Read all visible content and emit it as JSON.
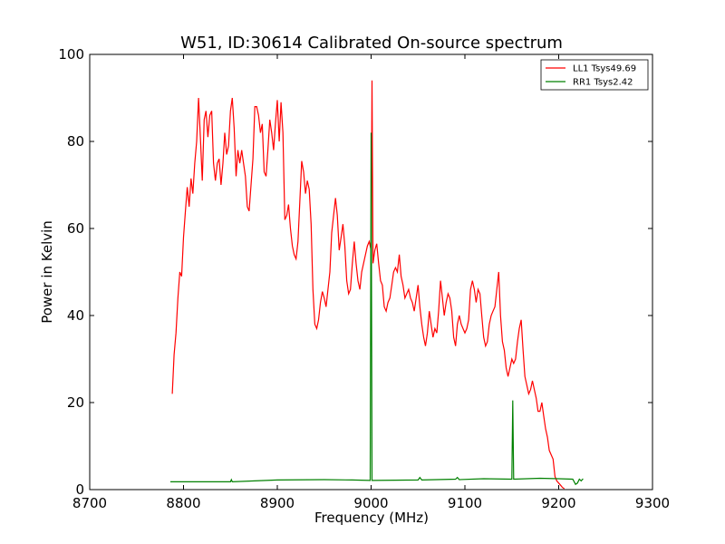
{
  "chart_data": {
    "type": "line",
    "title": "W51, ID:30614 Calibrated On-source spectrum",
    "xlabel": "Frequency (MHz)",
    "ylabel": "Power in Kelvin",
    "xlim": [
      8700,
      9300
    ],
    "ylim": [
      0,
      100
    ],
    "xticks": [
      "8700",
      "8800",
      "8900",
      "9000",
      "9100",
      "9200",
      "9300"
    ],
    "yticks": [
      "0",
      "20",
      "40",
      "60",
      "80",
      "100"
    ],
    "grid": false,
    "legend_position": "top-right",
    "series": [
      {
        "name": "LL1 Tsys49.69",
        "color": "#ff0000",
        "points": [
          [
            8788,
            22
          ],
          [
            8790,
            31
          ],
          [
            8792,
            36
          ],
          [
            8794,
            44
          ],
          [
            8796,
            50
          ],
          [
            8798,
            49
          ],
          [
            8800,
            58
          ],
          [
            8802,
            64
          ],
          [
            8804,
            69.5
          ],
          [
            8806,
            65
          ],
          [
            8808,
            71.5
          ],
          [
            8810,
            68
          ],
          [
            8812,
            75
          ],
          [
            8814,
            80
          ],
          [
            8816,
            90
          ],
          [
            8818,
            81
          ],
          [
            8820,
            71
          ],
          [
            8822,
            85
          ],
          [
            8824,
            87
          ],
          [
            8826,
            81
          ],
          [
            8828,
            86
          ],
          [
            8830,
            87
          ],
          [
            8832,
            75
          ],
          [
            8834,
            71
          ],
          [
            8836,
            75
          ],
          [
            8838,
            76
          ],
          [
            8840,
            70
          ],
          [
            8842,
            75
          ],
          [
            8844,
            82
          ],
          [
            8846,
            77
          ],
          [
            8848,
            79
          ],
          [
            8850,
            87
          ],
          [
            8852,
            90
          ],
          [
            8854,
            83
          ],
          [
            8856,
            72
          ],
          [
            8858,
            78
          ],
          [
            8860,
            75
          ],
          [
            8862,
            78
          ],
          [
            8864,
            75
          ],
          [
            8866,
            72
          ],
          [
            8868,
            65
          ],
          [
            8870,
            64
          ],
          [
            8872,
            70
          ],
          [
            8874,
            76
          ],
          [
            8876,
            88
          ],
          [
            8878,
            88
          ],
          [
            8880,
            86
          ],
          [
            8882,
            82
          ],
          [
            8884,
            84
          ],
          [
            8886,
            73
          ],
          [
            8888,
            72
          ],
          [
            8890,
            78
          ],
          [
            8892,
            85
          ],
          [
            8894,
            82
          ],
          [
            8896,
            78
          ],
          [
            8898,
            84
          ],
          [
            8900,
            89.5
          ],
          [
            8902,
            80
          ],
          [
            8904,
            89
          ],
          [
            8906,
            82
          ],
          [
            8908,
            62
          ],
          [
            8910,
            63
          ],
          [
            8912,
            65.5
          ],
          [
            8914,
            60
          ],
          [
            8916,
            56
          ],
          [
            8918,
            54
          ],
          [
            8920,
            53
          ],
          [
            8922,
            57
          ],
          [
            8924,
            66
          ],
          [
            8926,
            75.5
          ],
          [
            8928,
            73
          ],
          [
            8930,
            68
          ],
          [
            8932,
            71
          ],
          [
            8934,
            69
          ],
          [
            8936,
            61
          ],
          [
            8938,
            46
          ],
          [
            8940,
            38
          ],
          [
            8942,
            37
          ],
          [
            8944,
            39
          ],
          [
            8946,
            43
          ],
          [
            8948,
            45.5
          ],
          [
            8950,
            44
          ],
          [
            8952,
            42
          ],
          [
            8954,
            46
          ],
          [
            8956,
            50
          ],
          [
            8958,
            59
          ],
          [
            8960,
            63
          ],
          [
            8962,
            67
          ],
          [
            8964,
            63
          ],
          [
            8966,
            55
          ],
          [
            8968,
            58
          ],
          [
            8970,
            61
          ],
          [
            8972,
            56
          ],
          [
            8974,
            48
          ],
          [
            8976,
            45
          ],
          [
            8978,
            46
          ],
          [
            8980,
            52
          ],
          [
            8982,
            57
          ],
          [
            8984,
            52
          ],
          [
            8986,
            48
          ],
          [
            8988,
            46
          ],
          [
            8990,
            50
          ],
          [
            8992,
            52
          ],
          [
            8994,
            54
          ],
          [
            8996,
            56
          ],
          [
            8998,
            57
          ],
          [
            9000,
            55
          ],
          [
            9001,
            94
          ],
          [
            9002,
            52
          ],
          [
            9004,
            55
          ],
          [
            9006,
            56.5
          ],
          [
            9008,
            52
          ],
          [
            9010,
            48
          ],
          [
            9012,
            47
          ],
          [
            9014,
            42
          ],
          [
            9016,
            41
          ],
          [
            9018,
            43
          ],
          [
            9020,
            44
          ],
          [
            9022,
            47
          ],
          [
            9024,
            50
          ],
          [
            9026,
            51
          ],
          [
            9028,
            50
          ],
          [
            9030,
            54
          ],
          [
            9032,
            49
          ],
          [
            9034,
            47
          ],
          [
            9036,
            44
          ],
          [
            9038,
            45
          ],
          [
            9040,
            46
          ],
          [
            9042,
            44
          ],
          [
            9044,
            43
          ],
          [
            9046,
            41
          ],
          [
            9048,
            44
          ],
          [
            9050,
            47
          ],
          [
            9052,
            42
          ],
          [
            9054,
            38
          ],
          [
            9056,
            35
          ],
          [
            9058,
            33
          ],
          [
            9060,
            36
          ],
          [
            9062,
            41
          ],
          [
            9064,
            38
          ],
          [
            9066,
            35
          ],
          [
            9068,
            37
          ],
          [
            9070,
            36
          ],
          [
            9072,
            41
          ],
          [
            9074,
            48
          ],
          [
            9076,
            44
          ],
          [
            9078,
            40
          ],
          [
            9080,
            43
          ],
          [
            9082,
            45
          ],
          [
            9084,
            44
          ],
          [
            9086,
            41
          ],
          [
            9088,
            35
          ],
          [
            9090,
            33
          ],
          [
            9092,
            38
          ],
          [
            9094,
            40
          ],
          [
            9096,
            38
          ],
          [
            9098,
            37
          ],
          [
            9100,
            36
          ],
          [
            9102,
            37
          ],
          [
            9104,
            39
          ],
          [
            9106,
            46
          ],
          [
            9108,
            48
          ],
          [
            9110,
            46
          ],
          [
            9112,
            43
          ],
          [
            9114,
            46
          ],
          [
            9116,
            45
          ],
          [
            9118,
            40
          ],
          [
            9120,
            35
          ],
          [
            9122,
            33
          ],
          [
            9124,
            34
          ],
          [
            9126,
            38
          ],
          [
            9128,
            40
          ],
          [
            9130,
            41
          ],
          [
            9132,
            42
          ],
          [
            9134,
            46
          ],
          [
            9136,
            50
          ],
          [
            9138,
            40
          ],
          [
            9140,
            34
          ],
          [
            9142,
            32
          ],
          [
            9144,
            28
          ],
          [
            9146,
            26
          ],
          [
            9148,
            28
          ],
          [
            9150,
            30
          ],
          [
            9152,
            29
          ],
          [
            9154,
            30
          ],
          [
            9156,
            34
          ],
          [
            9158,
            37
          ],
          [
            9160,
            39
          ],
          [
            9162,
            32
          ],
          [
            9164,
            26
          ],
          [
            9166,
            24
          ],
          [
            9168,
            22
          ],
          [
            9170,
            23
          ],
          [
            9172,
            25
          ],
          [
            9174,
            23
          ],
          [
            9176,
            21
          ],
          [
            9178,
            18
          ],
          [
            9180,
            18
          ],
          [
            9182,
            20
          ],
          [
            9184,
            17
          ],
          [
            9186,
            14
          ],
          [
            9188,
            12
          ],
          [
            9190,
            9
          ],
          [
            9192,
            8
          ],
          [
            9194,
            7
          ],
          [
            9196,
            3
          ],
          [
            9198,
            2
          ],
          [
            9200,
            1.5
          ],
          [
            9202,
            1
          ],
          [
            9204,
            0.5
          ],
          [
            9206,
            0.2
          ]
        ]
      },
      {
        "name": "RR1 Tsys2.42",
        "color": "#008000",
        "points": [
          [
            8786,
            1.8
          ],
          [
            8820,
            1.8
          ],
          [
            8850,
            1.8
          ],
          [
            8851,
            2.3
          ],
          [
            8852,
            1.8
          ],
          [
            8900,
            2.2
          ],
          [
            8950,
            2.3
          ],
          [
            8980,
            2.2
          ],
          [
            8999,
            2.1
          ],
          [
            9000,
            82
          ],
          [
            9001,
            2.1
          ],
          [
            9050,
            2.2
          ],
          [
            9052,
            2.8
          ],
          [
            9054,
            2.2
          ],
          [
            9090,
            2.4
          ],
          [
            9092,
            2.8
          ],
          [
            9094,
            2.3
          ],
          [
            9120,
            2.5
          ],
          [
            9150,
            2.4
          ],
          [
            9151,
            20.5
          ],
          [
            9152,
            2.4
          ],
          [
            9180,
            2.6
          ],
          [
            9200,
            2.5
          ],
          [
            9215,
            2.4
          ],
          [
            9218,
            1.2
          ],
          [
            9220,
            1.5
          ],
          [
            9222,
            2.4
          ],
          [
            9224,
            2.0
          ],
          [
            9226,
            2.5
          ]
        ]
      }
    ]
  }
}
